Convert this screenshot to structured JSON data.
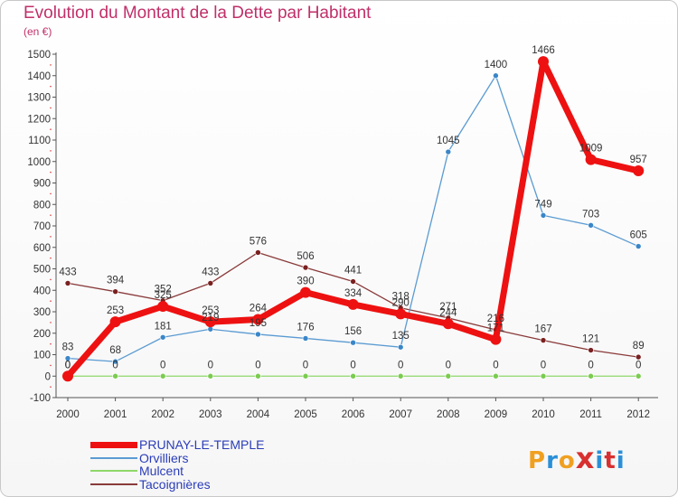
{
  "title": "Evolution du Montant de la Dette par Habitant",
  "subtitle": "(en €)",
  "logo_text": "Proxiti",
  "colors": {
    "title": "#c0306a",
    "legend_text": "#2b3db8",
    "logo": [
      "#f0a020",
      "#2b8fd8",
      "#f0a020",
      "#d83030",
      "#2b8fd8",
      "#d83030",
      "#2b8fd8"
    ]
  },
  "chart_data": {
    "type": "line",
    "title": "Evolution du Montant de la Dette par Habitant",
    "ylabel": "(en €)",
    "x": [
      "2000",
      "2001",
      "2002",
      "2003",
      "2004",
      "2005",
      "2006",
      "2007",
      "2008",
      "2009",
      "2010",
      "2011",
      "2012"
    ],
    "yticks": [
      -100,
      0,
      100,
      200,
      300,
      400,
      500,
      600,
      700,
      800,
      900,
      1000,
      1100,
      1200,
      1300,
      1400,
      1500
    ],
    "ylim": [
      -100,
      1500
    ],
    "grid": false,
    "legend_position": "bottom-left",
    "series": [
      {
        "name": "PRUNAY-LE-TEMPLE",
        "color": "#ee1111",
        "marker": "#ee1111",
        "width": 7,
        "values": [
          0,
          253,
          325,
          253,
          264,
          390,
          334,
          290,
          244,
          171,
          1466,
          1009,
          957
        ]
      },
      {
        "name": "Orvilliers",
        "color": "#5b9bd2",
        "marker": "#3a86c8",
        "width": 1.3,
        "values": [
          83,
          68,
          181,
          219,
          195,
          176,
          156,
          135,
          1045,
          1400,
          749,
          703,
          605
        ]
      },
      {
        "name": "Mulcent",
        "color": "#8ed86a",
        "marker": "#7bcb4f",
        "width": 1.3,
        "values": [
          0,
          0,
          0,
          0,
          0,
          0,
          0,
          0,
          0,
          0,
          0,
          0,
          0
        ]
      },
      {
        "name": "Tacoignières",
        "color": "#8a3a3a",
        "marker": "#7a2020",
        "width": 1.3,
        "values": [
          433,
          394,
          352,
          433,
          576,
          506,
          441,
          318,
          271,
          216,
          167,
          121,
          89
        ]
      }
    ],
    "data_labels": [
      {
        "series": 0,
        "labels": [
          "0",
          "253",
          "325",
          "253",
          "264",
          "390",
          "334",
          "290",
          "244",
          "171",
          "1466",
          "1009",
          "957"
        ]
      },
      {
        "series": 1,
        "labels": [
          "83",
          "68",
          "181",
          "219",
          "195",
          "176",
          "156",
          "135",
          "1045",
          "1400",
          "749",
          "703",
          "605"
        ]
      },
      {
        "series": 2,
        "labels": [
          "0",
          "0",
          "0",
          "0",
          "0",
          "0",
          "0",
          "0",
          "0",
          "0",
          "0",
          "0",
          "0"
        ]
      },
      {
        "series": 3,
        "labels": [
          "433",
          "394",
          "352",
          "433",
          "576",
          "506",
          "441",
          "318",
          "271",
          "216",
          "167",
          "121",
          "89"
        ]
      }
    ]
  }
}
